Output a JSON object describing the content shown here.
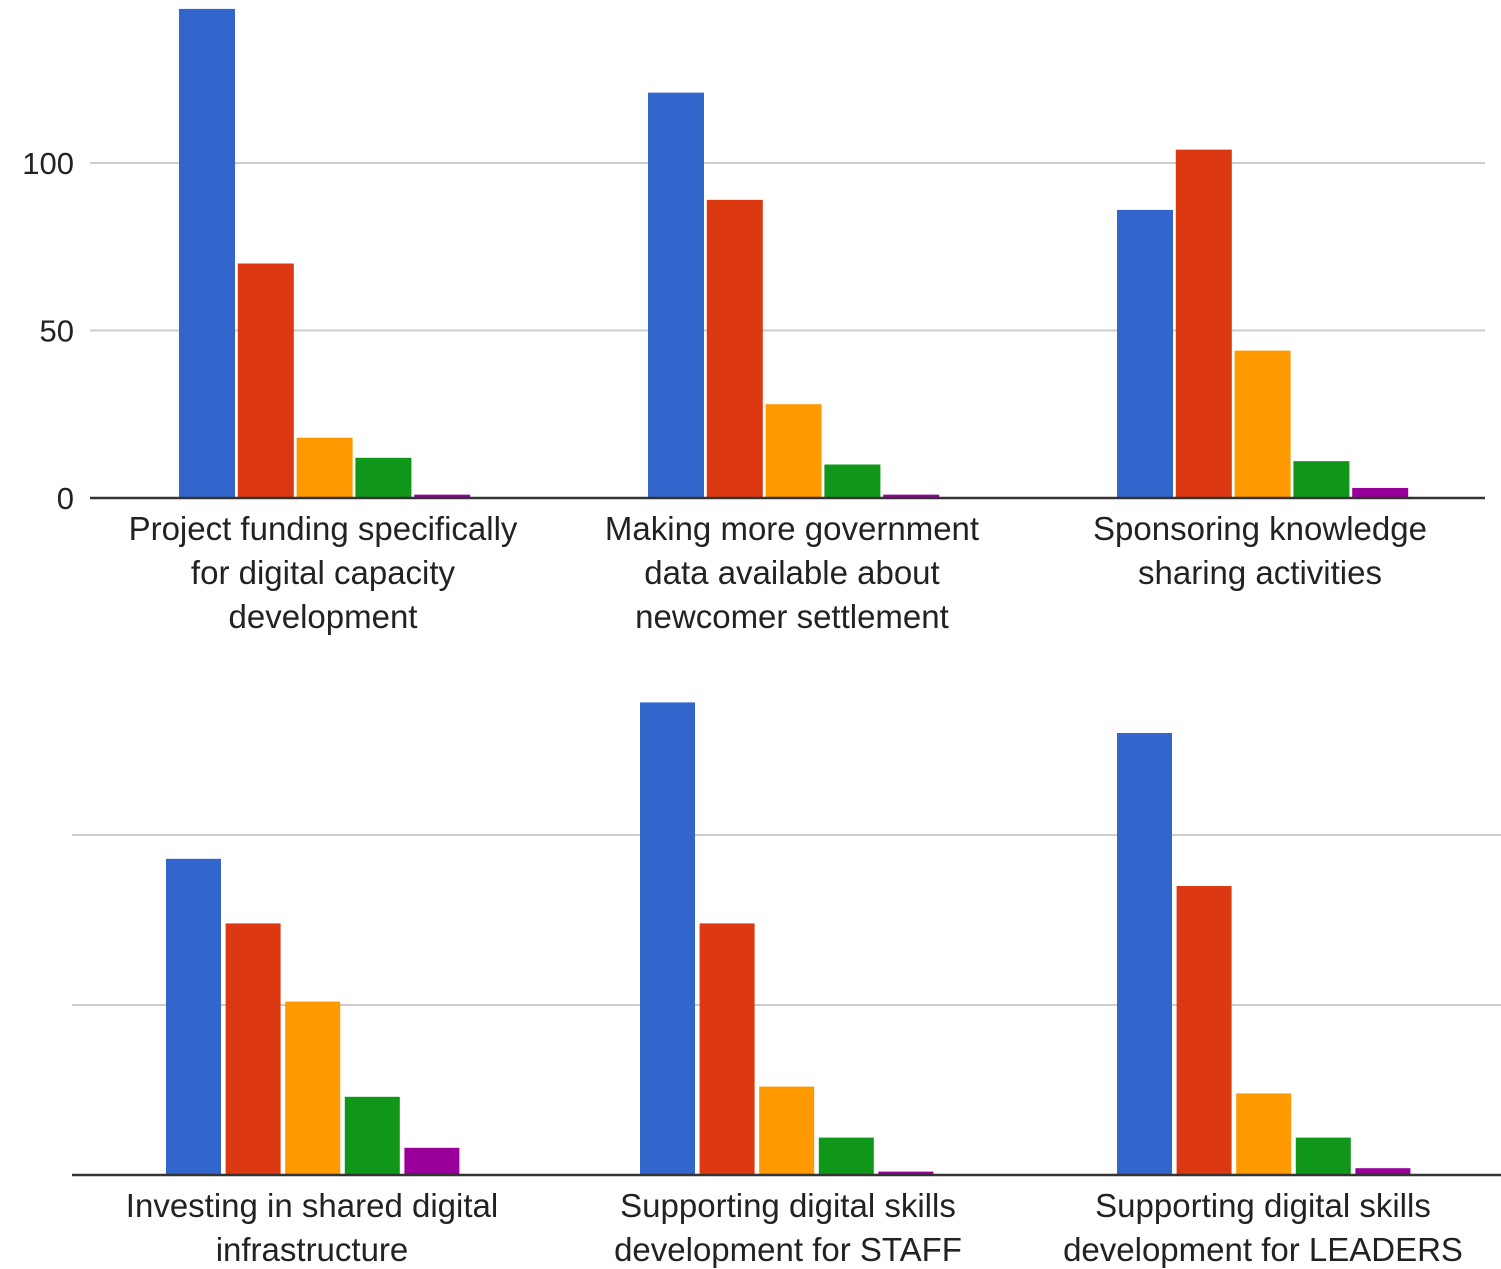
{
  "chart_data": [
    {
      "type": "bar",
      "categories": [
        [
          "Project funding specifically",
          "for digital capacity",
          "development"
        ],
        [
          "Making more government",
          "data available about",
          "newcomer settlement"
        ],
        [
          "Sponsoring knowledge",
          "sharing activities"
        ]
      ],
      "series": [
        {
          "values": [
            146,
            121,
            86
          ]
        },
        {
          "values": [
            70,
            89,
            104
          ]
        },
        {
          "values": [
            18,
            28,
            44
          ]
        },
        {
          "values": [
            12,
            10,
            11
          ]
        },
        {
          "values": [
            1,
            1,
            3
          ]
        }
      ],
      "yticks": [
        0,
        50,
        100
      ],
      "ylim": [
        0,
        146
      ],
      "grid": true
    },
    {
      "type": "bar",
      "categories": [
        [
          "Investing in shared digital",
          "infrastructure"
        ],
        [
          "Supporting digital skills",
          "development for STAFF"
        ],
        [
          "Supporting digital skills",
          "development for LEADERS"
        ]
      ],
      "series": [
        {
          "values": [
            93,
            139,
            130
          ]
        },
        {
          "values": [
            74,
            74,
            85
          ]
        },
        {
          "values": [
            51,
            26,
            24
          ]
        },
        {
          "values": [
            23,
            11,
            11
          ]
        },
        {
          "values": [
            8,
            1,
            2
          ]
        }
      ],
      "yticks": [
        0,
        50,
        100
      ],
      "ylim": [
        0,
        146
      ],
      "grid": true
    }
  ],
  "colors": [
    "#3366cc",
    "#dc3912",
    "#ff9900",
    "#109618",
    "#990099"
  ]
}
